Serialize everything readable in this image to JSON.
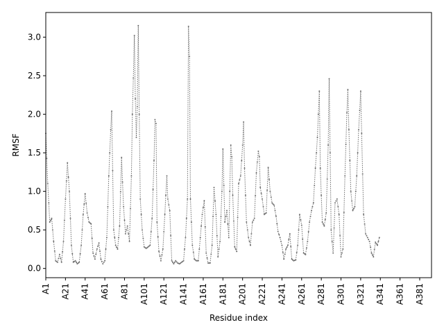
{
  "chart_data": {
    "type": "line",
    "title": "",
    "xlabel": "Residue index",
    "ylabel": "RMSF",
    "ylim": [
      -0.12,
      3.32
    ],
    "xlim": [
      1,
      393
    ],
    "grid": false,
    "x_tick_labels": [
      "A1",
      "A21",
      "A41",
      "A61",
      "A81",
      "A101",
      "A121",
      "A141",
      "A161",
      "A181",
      "A201",
      "A221",
      "A241",
      "A261",
      "A281",
      "A301",
      "A321",
      "A341",
      "A361",
      "A381"
    ],
    "x_tick_values": [
      1,
      21,
      41,
      61,
      81,
      101,
      121,
      141,
      161,
      181,
      201,
      221,
      241,
      261,
      281,
      301,
      321,
      341,
      361,
      381
    ],
    "y_tick_values": [
      0.0,
      0.5,
      1.0,
      1.5,
      2.0,
      2.5,
      3.0
    ],
    "y_tick_labels": [
      "0.0",
      "0.5",
      "1.0",
      "1.5",
      "2.0",
      "2.5",
      "3.0"
    ],
    "line_color": "#6e6e6e",
    "keypoints": [
      [
        1,
        1.75
      ],
      [
        3,
        1.1
      ],
      [
        5,
        0.6
      ],
      [
        7,
        0.65
      ],
      [
        9,
        0.35
      ],
      [
        11,
        0.1
      ],
      [
        13,
        0.08
      ],
      [
        15,
        0.18
      ],
      [
        17,
        0.08
      ],
      [
        19,
        0.35
      ],
      [
        21,
        0.9
      ],
      [
        23,
        1.37
      ],
      [
        25,
        1.0
      ],
      [
        27,
        0.3
      ],
      [
        29,
        0.08
      ],
      [
        31,
        0.1
      ],
      [
        33,
        0.06
      ],
      [
        35,
        0.08
      ],
      [
        37,
        0.3
      ],
      [
        39,
        0.7
      ],
      [
        41,
        0.97
      ],
      [
        43,
        0.72
      ],
      [
        45,
        0.6
      ],
      [
        47,
        0.58
      ],
      [
        49,
        0.2
      ],
      [
        51,
        0.12
      ],
      [
        53,
        0.25
      ],
      [
        55,
        0.33
      ],
      [
        57,
        0.12
      ],
      [
        59,
        0.06
      ],
      [
        61,
        0.1
      ],
      [
        63,
        0.4
      ],
      [
        65,
        1.2
      ],
      [
        67,
        1.8
      ],
      [
        68,
        2.04
      ],
      [
        70,
        0.5
      ],
      [
        72,
        0.3
      ],
      [
        74,
        0.25
      ],
      [
        76,
        0.55
      ],
      [
        78,
        1.44
      ],
      [
        80,
        0.8
      ],
      [
        82,
        0.45
      ],
      [
        84,
        0.55
      ],
      [
        86,
        0.35
      ],
      [
        88,
        1.2
      ],
      [
        89,
        2.0
      ],
      [
        90,
        2.47
      ],
      [
        91,
        3.02
      ],
      [
        92,
        2.2
      ],
      [
        93,
        1.7
      ],
      [
        94,
        2.1
      ],
      [
        95,
        3.15
      ],
      [
        96,
        2.0
      ],
      [
        97,
        0.9
      ],
      [
        99,
        0.5
      ],
      [
        101,
        0.28
      ],
      [
        103,
        0.26
      ],
      [
        105,
        0.28
      ],
      [
        107,
        0.3
      ],
      [
        109,
        0.65
      ],
      [
        111,
        1.4
      ],
      [
        112,
        1.93
      ],
      [
        113,
        1.88
      ],
      [
        114,
        0.6
      ],
      [
        116,
        0.22
      ],
      [
        118,
        0.1
      ],
      [
        120,
        0.25
      ],
      [
        122,
        0.7
      ],
      [
        124,
        1.2
      ],
      [
        125,
        0.9
      ],
      [
        127,
        0.75
      ],
      [
        129,
        0.1
      ],
      [
        131,
        0.06
      ],
      [
        133,
        0.1
      ],
      [
        135,
        0.07
      ],
      [
        137,
        0.06
      ],
      [
        139,
        0.08
      ],
      [
        141,
        0.1
      ],
      [
        143,
        0.4
      ],
      [
        145,
        0.9
      ],
      [
        146,
        3.14
      ],
      [
        147,
        2.75
      ],
      [
        148,
        0.9
      ],
      [
        150,
        0.3
      ],
      [
        152,
        0.12
      ],
      [
        154,
        0.1
      ],
      [
        156,
        0.1
      ],
      [
        158,
        0.4
      ],
      [
        160,
        0.7
      ],
      [
        162,
        0.88
      ],
      [
        164,
        0.2
      ],
      [
        166,
        0.07
      ],
      [
        168,
        0.07
      ],
      [
        170,
        0.3
      ],
      [
        172,
        1.05
      ],
      [
        174,
        0.7
      ],
      [
        176,
        0.15
      ],
      [
        178,
        0.35
      ],
      [
        180,
        1.0
      ],
      [
        181,
        1.55
      ],
      [
        183,
        0.6
      ],
      [
        185,
        0.75
      ],
      [
        187,
        0.4
      ],
      [
        189,
        1.6
      ],
      [
        190,
        1.45
      ],
      [
        191,
        0.95
      ],
      [
        193,
        0.28
      ],
      [
        195,
        0.22
      ],
      [
        197,
        1.1
      ],
      [
        199,
        1.2
      ],
      [
        201,
        1.6
      ],
      [
        202,
        1.9
      ],
      [
        203,
        1.3
      ],
      [
        205,
        0.6
      ],
      [
        207,
        0.4
      ],
      [
        209,
        0.3
      ],
      [
        211,
        0.6
      ],
      [
        213,
        0.65
      ],
      [
        215,
        1.24
      ],
      [
        217,
        1.52
      ],
      [
        218,
        1.45
      ],
      [
        219,
        1.05
      ],
      [
        221,
        0.9
      ],
      [
        223,
        0.7
      ],
      [
        225,
        0.72
      ],
      [
        227,
        1.31
      ],
      [
        229,
        1.0
      ],
      [
        231,
        0.85
      ],
      [
        233,
        0.82
      ],
      [
        235,
        0.68
      ],
      [
        237,
        0.48
      ],
      [
        239,
        0.4
      ],
      [
        241,
        0.3
      ],
      [
        243,
        0.12
      ],
      [
        245,
        0.25
      ],
      [
        247,
        0.3
      ],
      [
        249,
        0.45
      ],
      [
        251,
        0.12
      ],
      [
        253,
        0.1
      ],
      [
        255,
        0.11
      ],
      [
        257,
        0.3
      ],
      [
        259,
        0.7
      ],
      [
        261,
        0.56
      ],
      [
        263,
        0.2
      ],
      [
        265,
        0.18
      ],
      [
        267,
        0.35
      ],
      [
        269,
        0.6
      ],
      [
        271,
        0.75
      ],
      [
        273,
        0.85
      ],
      [
        275,
        1.3
      ],
      [
        277,
        1.7
      ],
      [
        278,
        2.0
      ],
      [
        279,
        2.3
      ],
      [
        280,
        1.3
      ],
      [
        282,
        0.6
      ],
      [
        284,
        0.55
      ],
      [
        286,
        0.72
      ],
      [
        288,
        1.6
      ],
      [
        289,
        2.46
      ],
      [
        290,
        1.5
      ],
      [
        291,
        0.5
      ],
      [
        293,
        0.2
      ],
      [
        295,
        0.85
      ],
      [
        297,
        0.9
      ],
      [
        299,
        0.7
      ],
      [
        301,
        0.15
      ],
      [
        303,
        0.25
      ],
      [
        305,
        1.2
      ],
      [
        307,
        2.02
      ],
      [
        308,
        2.32
      ],
      [
        309,
        1.8
      ],
      [
        311,
        1.0
      ],
      [
        313,
        0.75
      ],
      [
        315,
        0.8
      ],
      [
        317,
        1.2
      ],
      [
        319,
        1.8
      ],
      [
        321,
        2.3
      ],
      [
        322,
        1.75
      ],
      [
        324,
        0.7
      ],
      [
        326,
        0.45
      ],
      [
        328,
        0.4
      ],
      [
        330,
        0.35
      ],
      [
        332,
        0.2
      ],
      [
        334,
        0.15
      ],
      [
        336,
        0.34
      ],
      [
        338,
        0.3
      ],
      [
        340,
        0.4
      ]
    ]
  }
}
